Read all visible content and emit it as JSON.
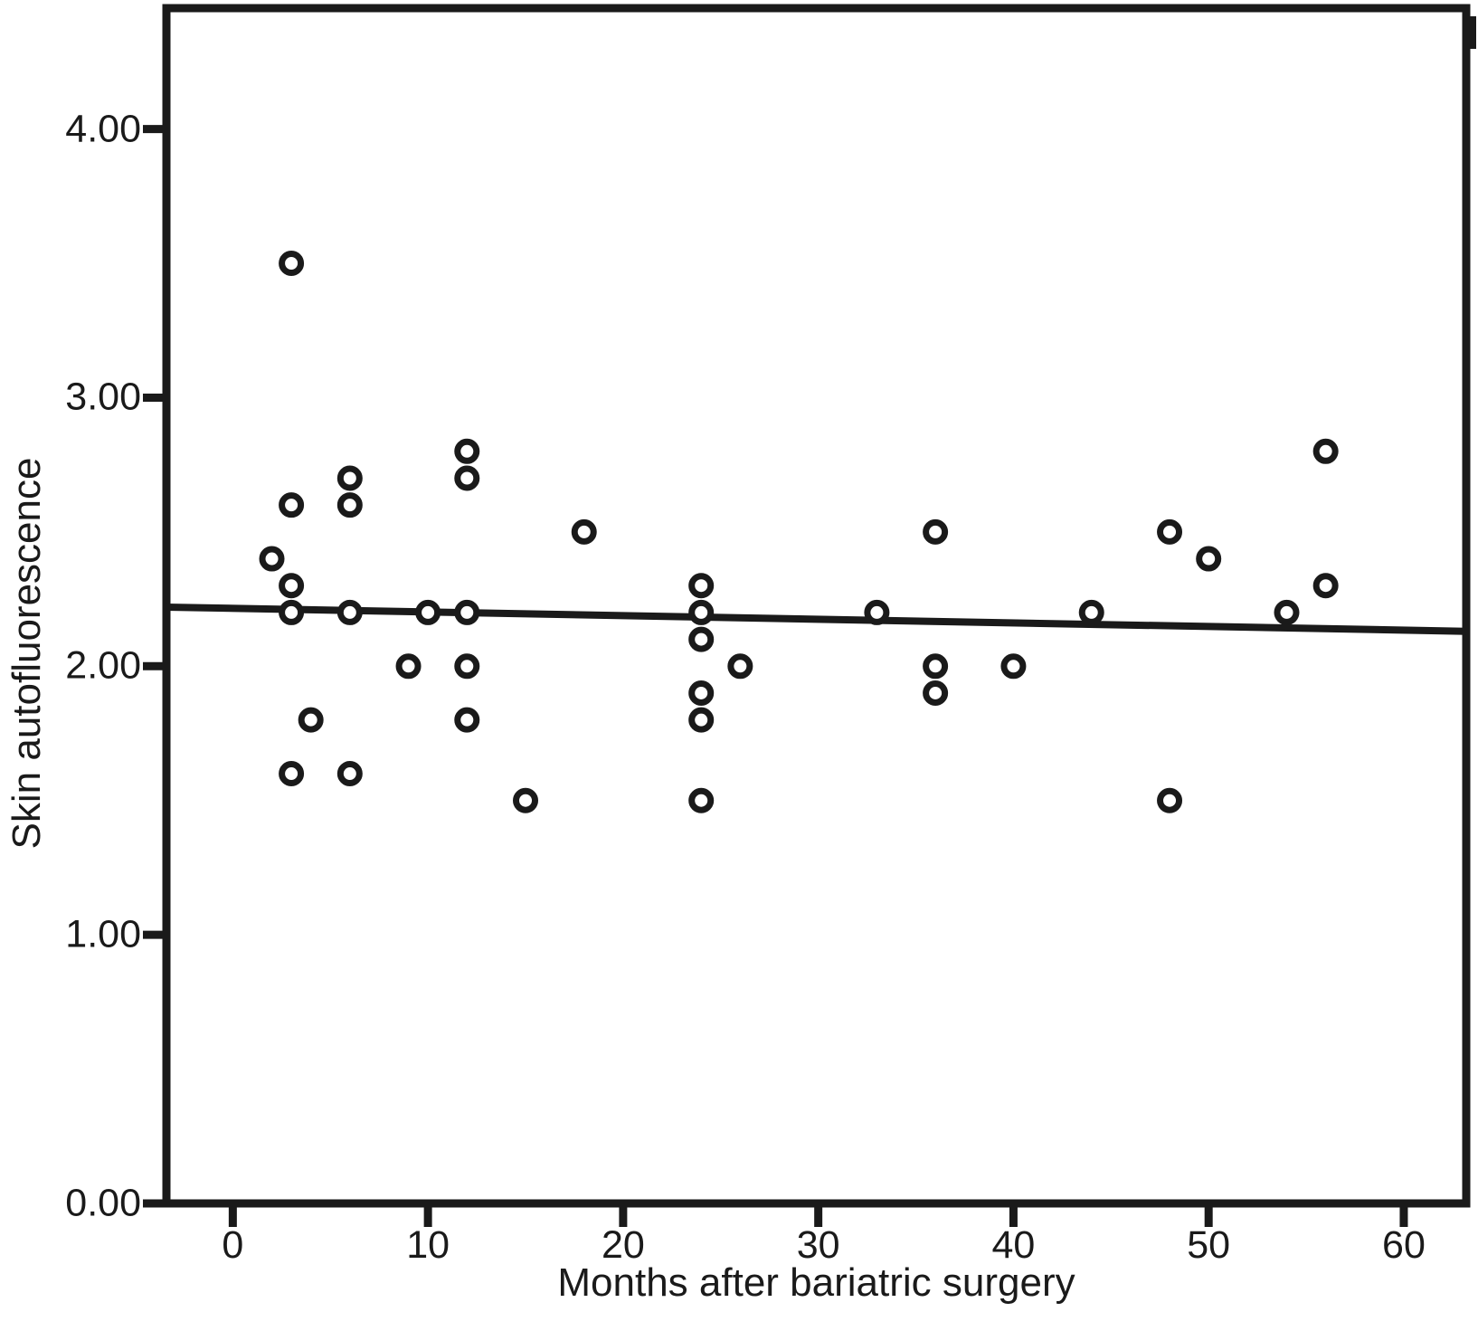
{
  "figure": {
    "background": "#ffffff",
    "ink_color": "#1a1a1a",
    "marker_style": "open-circle"
  },
  "chart_data": {
    "type": "scatter",
    "title": "",
    "xlabel": "Months after bariatric surgery",
    "ylabel": "Skin autofluorescence",
    "xlim": [
      -3.4,
      63.2
    ],
    "ylim": [
      0,
      4.45
    ],
    "grid": false,
    "legend": null,
    "x_ticks": [
      {
        "value": 0,
        "label": "0"
      },
      {
        "value": 10,
        "label": "10"
      },
      {
        "value": 20,
        "label": "20"
      },
      {
        "value": 30,
        "label": "30"
      },
      {
        "value": 40,
        "label": "40"
      },
      {
        "value": 50,
        "label": "50"
      },
      {
        "value": 60,
        "label": "60"
      }
    ],
    "y_ticks": [
      {
        "value": 0,
        "label": "0.00"
      },
      {
        "value": 1,
        "label": "1.00"
      },
      {
        "value": 2,
        "label": "2.00"
      },
      {
        "value": 3,
        "label": "3.00"
      },
      {
        "value": 4,
        "label": "4.00"
      }
    ],
    "points": [
      [
        2,
        2.4
      ],
      [
        3,
        3.5
      ],
      [
        3,
        2.6
      ],
      [
        3,
        2.3
      ],
      [
        3,
        2.2
      ],
      [
        3,
        1.6
      ],
      [
        4,
        1.8
      ],
      [
        6,
        2.7
      ],
      [
        6,
        2.6
      ],
      [
        6,
        2.2
      ],
      [
        6,
        1.6
      ],
      [
        9,
        2.0
      ],
      [
        10,
        2.2
      ],
      [
        12,
        2.8
      ],
      [
        12,
        2.7
      ],
      [
        12,
        2.2
      ],
      [
        12,
        2.0
      ],
      [
        12,
        1.8
      ],
      [
        15,
        1.5
      ],
      [
        18,
        2.5
      ],
      [
        24,
        2.3
      ],
      [
        24,
        2.2
      ],
      [
        24,
        2.1
      ],
      [
        24,
        1.9
      ],
      [
        24,
        1.8
      ],
      [
        24,
        1.5
      ],
      [
        26,
        2.0
      ],
      [
        33,
        2.2
      ],
      [
        36,
        2.5
      ],
      [
        36,
        2.0
      ],
      [
        36,
        1.9
      ],
      [
        40,
        2.0
      ],
      [
        44,
        2.2
      ],
      [
        48,
        2.5
      ],
      [
        48,
        1.5
      ],
      [
        50,
        2.4
      ],
      [
        54,
        2.2
      ],
      [
        56,
        2.8
      ],
      [
        56,
        2.3
      ]
    ],
    "trend_line": {
      "x1": -3.4,
      "y1": 2.22,
      "x2": 63.2,
      "y2": 2.13
    }
  }
}
